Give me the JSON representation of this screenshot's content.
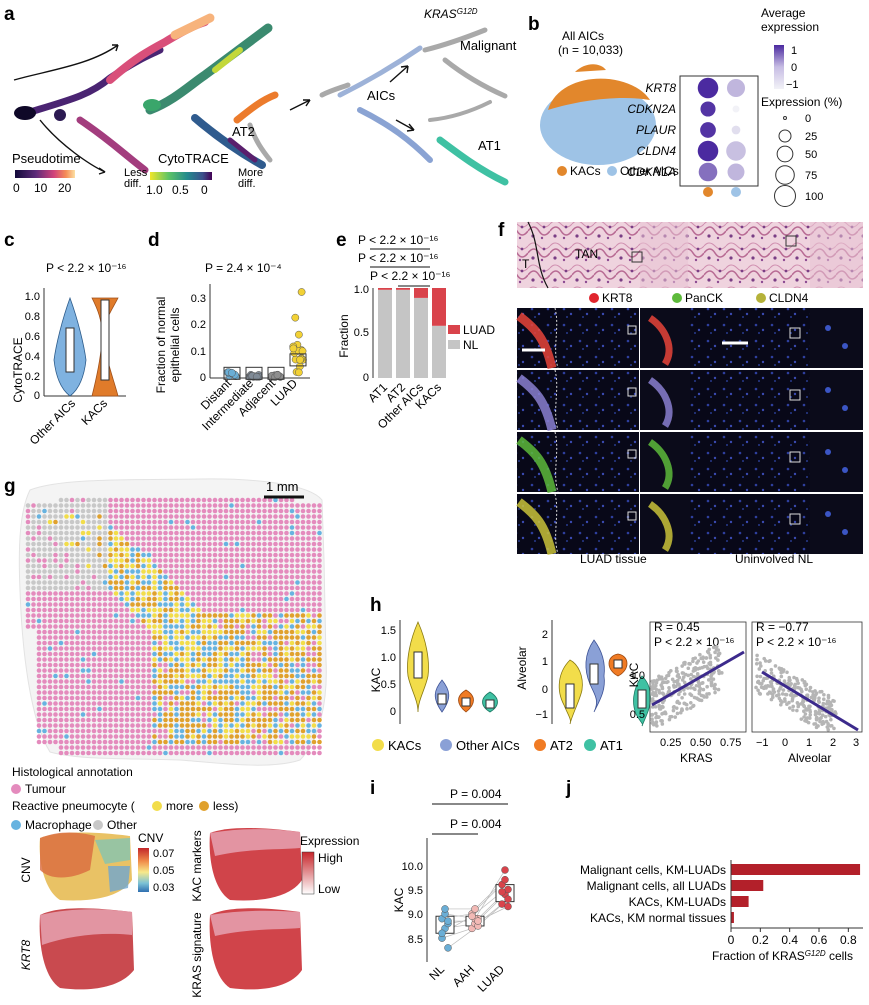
{
  "panel_letters": {
    "a": "a",
    "b": "b",
    "c": "c",
    "d": "d",
    "e": "e",
    "f": "f",
    "g": "g",
    "h": "h",
    "i": "i",
    "j": "j"
  },
  "a": {
    "pseudotime_label": "Pseudotime",
    "pseudotime_ticks": [
      "0",
      "10",
      "20"
    ],
    "cytotrace_label": "CytoTRACE",
    "less_diff": "Less\ndiff.",
    "more_diff": "More\ndiff.",
    "cytotrace_ticks": [
      "1.0",
      "0.5",
      "0"
    ],
    "at2": "AT2",
    "aics": "AICs",
    "malignant": "Malignant",
    "at1": "AT1",
    "kras_base": "KRAS",
    "kras_sup": "G12D"
  },
  "b": {
    "title": "All AICs",
    "n_line": "(n = 10,033)",
    "genes": [
      "KRT8",
      "CDKN2A",
      "PLAUR",
      "CLDN4",
      "CDKN1A"
    ],
    "avg_expr_title": "Average\nexpression",
    "avg_ticks": [
      "1",
      "0",
      "−1"
    ],
    "pct_title": "Expression (%)",
    "pct_ticks": [
      "0",
      "25",
      "50",
      "75",
      "100"
    ],
    "legend": [
      "KACs",
      "Other AICs"
    ]
  },
  "c": {
    "pval": "P < 2.2 × 10⁻¹⁶",
    "ylabel": "CytoTRACE",
    "yticks": [
      "0",
      "0.2",
      "0.4",
      "0.6",
      "0.8",
      "1.0"
    ],
    "categories": [
      "Other AICs",
      "KACs"
    ]
  },
  "d": {
    "pval": "P = 2.4 × 10⁻⁴",
    "ylabel": "Fraction of normal\nepithelial cells",
    "yticks": [
      "0",
      "0.1",
      "0.2",
      "0.3"
    ],
    "categories": [
      "Distant",
      "Intermediate",
      "Adjacent",
      "LUAD"
    ]
  },
  "e": {
    "pvals": [
      "P < 2.2 × 10⁻¹⁶",
      "P < 2.2 × 10⁻¹⁶",
      "P < 2.2 × 10⁻¹⁶"
    ],
    "ylabel": "Fraction",
    "yticks": [
      "0",
      "0.5",
      "1.0"
    ],
    "legend": [
      "LUAD",
      "NL"
    ]
  },
  "f": {
    "t_label": "T",
    "tan_label": "TAN",
    "markers": [
      "KRT8",
      "PanCK",
      "CLDN4"
    ],
    "bottom_labels": [
      "LUAD tissue",
      "Uninvolved NL"
    ]
  },
  "g": {
    "scale": "1 mm",
    "hist_title": "Histological annotation",
    "tumour": "Tumour",
    "reactive": "Reactive pneumocyte (",
    "more": "more",
    "less": "less)",
    "macrophage": "Macrophage",
    "other": "Other",
    "cnv_label": "CNV",
    "cnv_title": "CNV",
    "cnv_ticks": [
      "0.07",
      "0.05",
      "0.03"
    ],
    "krt8_label": "KRT8",
    "kac_markers": "KAC markers",
    "kras_signature": "KRAS signature",
    "expr_title": "Expression",
    "high": "High",
    "low": "Low"
  },
  "h": {
    "kac_label": "KAC",
    "kac_yticks": [
      "0",
      "0.5",
      "1.0",
      "1.5"
    ],
    "alv_label": "Alveolar",
    "alv_yticks": [
      "−1",
      "0",
      "1",
      "2"
    ],
    "legend": [
      "KACs",
      "Other AICs",
      "AT2",
      "AT1"
    ],
    "scatter1_r": "R = 0.45",
    "scatter1_p": "P < 2.2 × 10⁻¹⁶",
    "scatter1_x": "KRAS",
    "scatter1_y": "KAC",
    "scatter1_xticks": [
      "0.25",
      "0.50",
      "0.75"
    ],
    "scatter1_yticks": [
      "0.5",
      "1.0"
    ],
    "scatter2_r": "R = −0.77",
    "scatter2_p": "P < 2.2 × 10⁻¹⁶",
    "scatter2_x": "Alveolar",
    "scatter2_xticks": [
      "−1",
      "0",
      "1",
      "2",
      "3"
    ]
  },
  "i": {
    "pval1": "P = 0.004",
    "pval2": "P = 0.004",
    "ylabel": "KAC",
    "yticks": [
      "8.5",
      "9.0",
      "9.5",
      "10.0"
    ],
    "categories": [
      "NL",
      "AAH",
      "LUAD"
    ]
  },
  "colors": {
    "kac": "#e2872c",
    "other": "#9ec3e6",
    "at2": "#f07b24",
    "at1": "#3fc1a3",
    "tumour": "#e48bbd",
    "yellow": "#f2dd4a",
    "orange": "#e0a12d",
    "macro": "#67b3e0",
    "gray": "#c8c8c8",
    "crimson": "#b3202a",
    "purple": "#5b3fa0",
    "ihc_red": "#e8443a",
    "ihc_green": "#5dba3b",
    "ihc_olive": "#b5b23a"
  },
  "chart_data": [
    {
      "type": "bar",
      "panel": "j",
      "categories": [
        "Malignant cells, KM-LUADs",
        "Malignant cells, all LUADs",
        "KACs, KM-LUADs",
        "KACs, KM normal tissues"
      ],
      "values": [
        0.88,
        0.22,
        0.12,
        0.02
      ],
      "xlabel_base": "Fraction of KRAS",
      "xlabel_sup": "G12D",
      "xlabel_suffix": " cells",
      "xticks": [
        "0",
        "0.2",
        "0.4",
        "0.6",
        "0.8"
      ],
      "xlim": [
        0,
        0.9
      ]
    },
    {
      "type": "bar",
      "panel": "e",
      "categories": [
        "AT1",
        "AT2",
        "Other AICs",
        "KACs"
      ],
      "series": [
        {
          "name": "NL",
          "values": [
            0.98,
            0.98,
            0.89,
            0.58
          ]
        },
        {
          "name": "LUAD",
          "values": [
            0.02,
            0.02,
            0.11,
            0.42
          ]
        }
      ],
      "ylim": [
        0,
        1
      ]
    },
    {
      "type": "heatmap",
      "panel": "b",
      "categories": [
        "KRT8",
        "CDKN2A",
        "PLAUR",
        "CLDN4",
        "CDKN1A"
      ],
      "series": [
        {
          "name": "KACs",
          "avg_expr": [
            1,
            0.9,
            0.9,
            1,
            0.3
          ],
          "pct": [
            95,
            45,
            50,
            95,
            75
          ]
        },
        {
          "name": "Other AICs",
          "avg_expr": [
            -0.4,
            -1,
            -0.8,
            -0.5,
            -0.4
          ],
          "pct": [
            70,
            5,
            10,
            85,
            60
          ]
        }
      ]
    }
  ]
}
